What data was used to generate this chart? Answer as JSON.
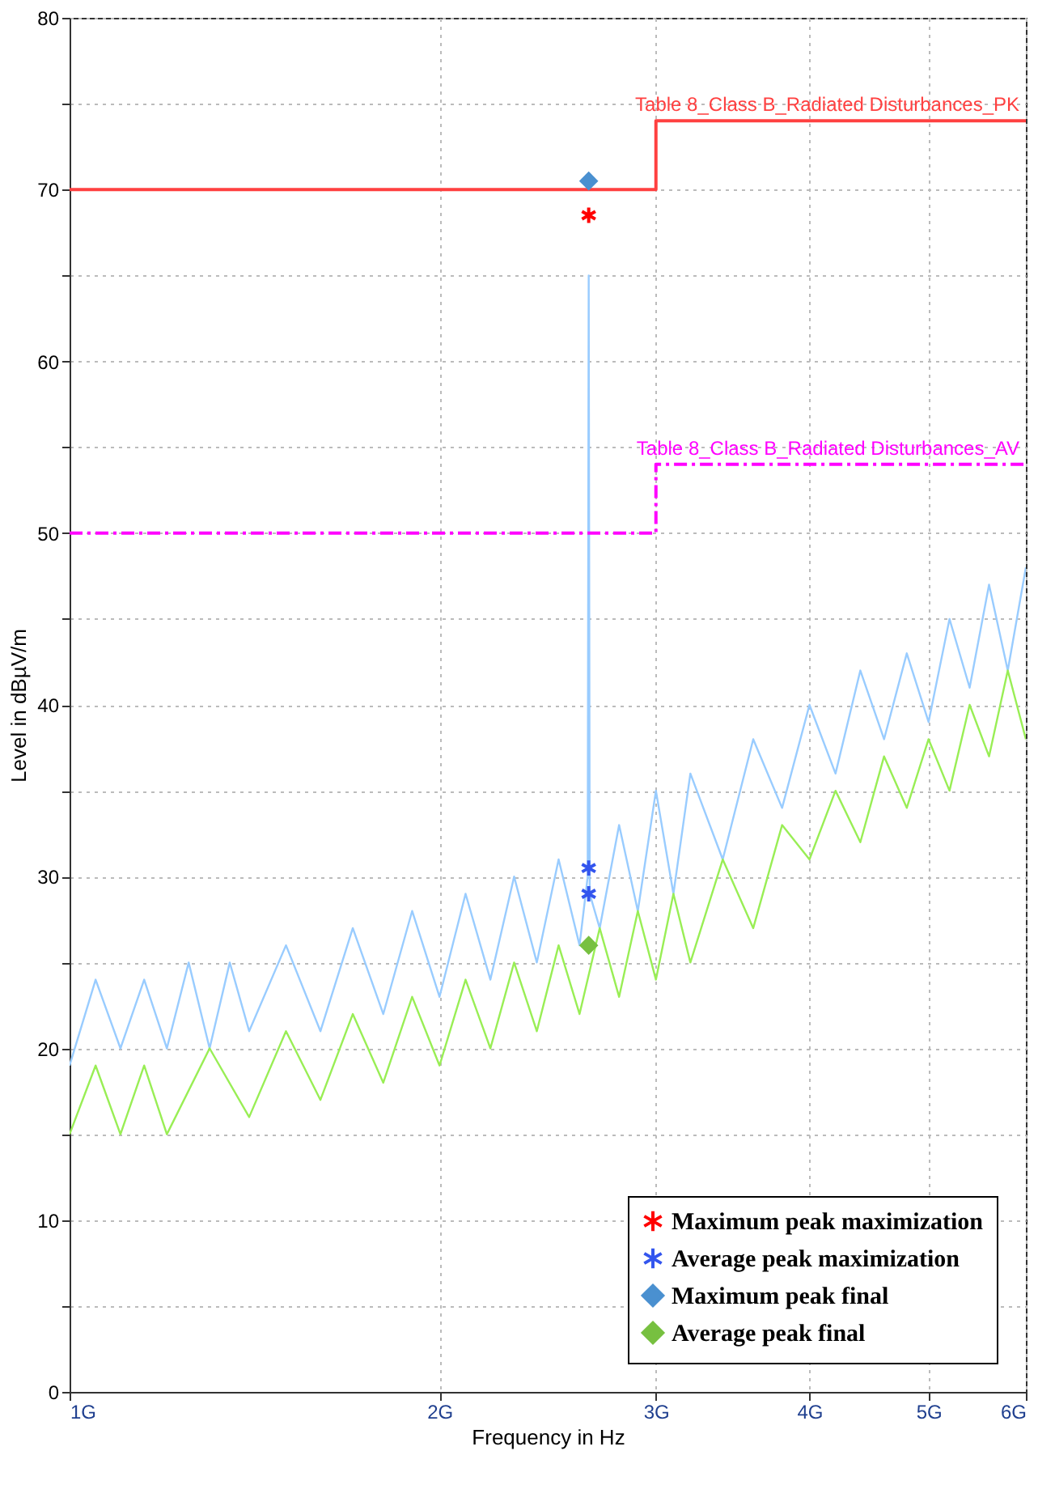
{
  "chart_data": {
    "type": "line",
    "xlabel": "Frequency in Hz",
    "ylabel": "Level in dBµV/m",
    "xlim": [
      1,
      6
    ],
    "xticks": [
      {
        "value": 1,
        "label": "1G"
      },
      {
        "value": 2,
        "label": "2G"
      },
      {
        "value": 3,
        "label": "3G"
      },
      {
        "value": 4,
        "label": "4G"
      },
      {
        "value": 5,
        "label": "5G"
      },
      {
        "value": 6,
        "label": "6G"
      }
    ],
    "ylim": [
      0,
      80
    ],
    "yticks": [
      0,
      {
        "value": 5,
        "label": null
      },
      10,
      {
        "value": 15,
        "label": null
      },
      20,
      {
        "value": 25,
        "label": null
      },
      30,
      {
        "value": 35,
        "label": null
      },
      40,
      {
        "value": 45,
        "label": null
      },
      50,
      {
        "value": 55,
        "label": null
      },
      60,
      {
        "value": 65,
        "label": null
      },
      70,
      {
        "value": 75,
        "label": null
      },
      80
    ],
    "log": "x",
    "grid": true,
    "legend": "bottom right",
    "series": [
      {
        "color": "#99ccff",
        "x": [
          1.0,
          1.05,
          1.1,
          1.15,
          1.2,
          1.25,
          1.3,
          1.35,
          1.4,
          1.5,
          1.6,
          1.7,
          1.8,
          1.9,
          2.0,
          2.1,
          2.2,
          2.3,
          2.4,
          2.5,
          2.6,
          2.64,
          2.645,
          2.65,
          2.7,
          2.8,
          2.9,
          3.0,
          3.1,
          3.2,
          3.4,
          3.6,
          3.8,
          4.0,
          4.2,
          4.4,
          4.6,
          4.8,
          5.0,
          5.2,
          5.4,
          5.6,
          5.8,
          6.0
        ],
        "values": [
          19,
          24,
          20,
          24,
          20,
          25,
          20,
          25,
          21,
          26,
          21,
          27,
          22,
          28,
          23,
          29,
          24,
          30,
          25,
          31,
          26,
          30,
          65,
          29,
          27,
          33,
          28,
          35,
          29,
          36,
          31,
          38,
          34,
          40,
          36,
          42,
          38,
          43,
          39,
          45,
          41,
          47,
          42,
          48
        ]
      },
      {
        "color": "#99ee55",
        "x": [
          1.0,
          1.05,
          1.1,
          1.15,
          1.2,
          1.3,
          1.4,
          1.5,
          1.6,
          1.7,
          1.8,
          1.9,
          2.0,
          2.1,
          2.2,
          2.3,
          2.4,
          2.5,
          2.6,
          2.7,
          2.8,
          2.9,
          3.0,
          3.1,
          3.2,
          3.4,
          3.6,
          3.8,
          4.0,
          4.2,
          4.4,
          4.6,
          4.8,
          5.0,
          5.2,
          5.4,
          5.6,
          5.8,
          6.0
        ],
        "values": [
          15,
          19,
          15,
          19,
          15,
          20,
          16,
          21,
          17,
          22,
          18,
          23,
          19,
          24,
          20,
          25,
          21,
          26,
          22,
          27,
          23,
          28,
          24,
          29,
          25,
          31,
          27,
          33,
          31,
          35,
          32,
          37,
          34,
          38,
          35,
          40,
          37,
          42,
          38
        ]
      },
      {
        "name": "Table 8_Class B_Radiated Disturbances_PK",
        "color": "#ff4040",
        "line_style": "solid",
        "x": [
          1,
          3,
          3,
          6
        ],
        "values": [
          70,
          70,
          74,
          74
        ]
      },
      {
        "name": "Table 8_Class B_Radiated Disturbances_AV",
        "color": "#ff00ff",
        "line_style": "dashed",
        "x": [
          1,
          3,
          3,
          6
        ],
        "values": [
          50,
          50,
          54,
          54
        ]
      },
      {
        "type": "scatter",
        "name": "Maximum peak maximization",
        "color": "#ff0000",
        "marker": "cross",
        "x": [
          2.645
        ],
        "values": [
          68.5
        ]
      },
      {
        "type": "scatter",
        "name": "Average peak maximization",
        "color": "#3355ee",
        "marker": "cross",
        "x": [
          2.645,
          2.645
        ],
        "values": [
          30.5,
          29
        ]
      },
      {
        "type": "scatter",
        "name": "Maximum peak final",
        "color": "#4a90d0",
        "marker": "diamond",
        "x": [
          2.645
        ],
        "values": [
          70.5
        ]
      },
      {
        "type": "scatter",
        "name": "Average peak final",
        "color": "#77c040",
        "marker": "diamond",
        "x": [
          2.645
        ],
        "values": [
          26
        ]
      }
    ]
  }
}
